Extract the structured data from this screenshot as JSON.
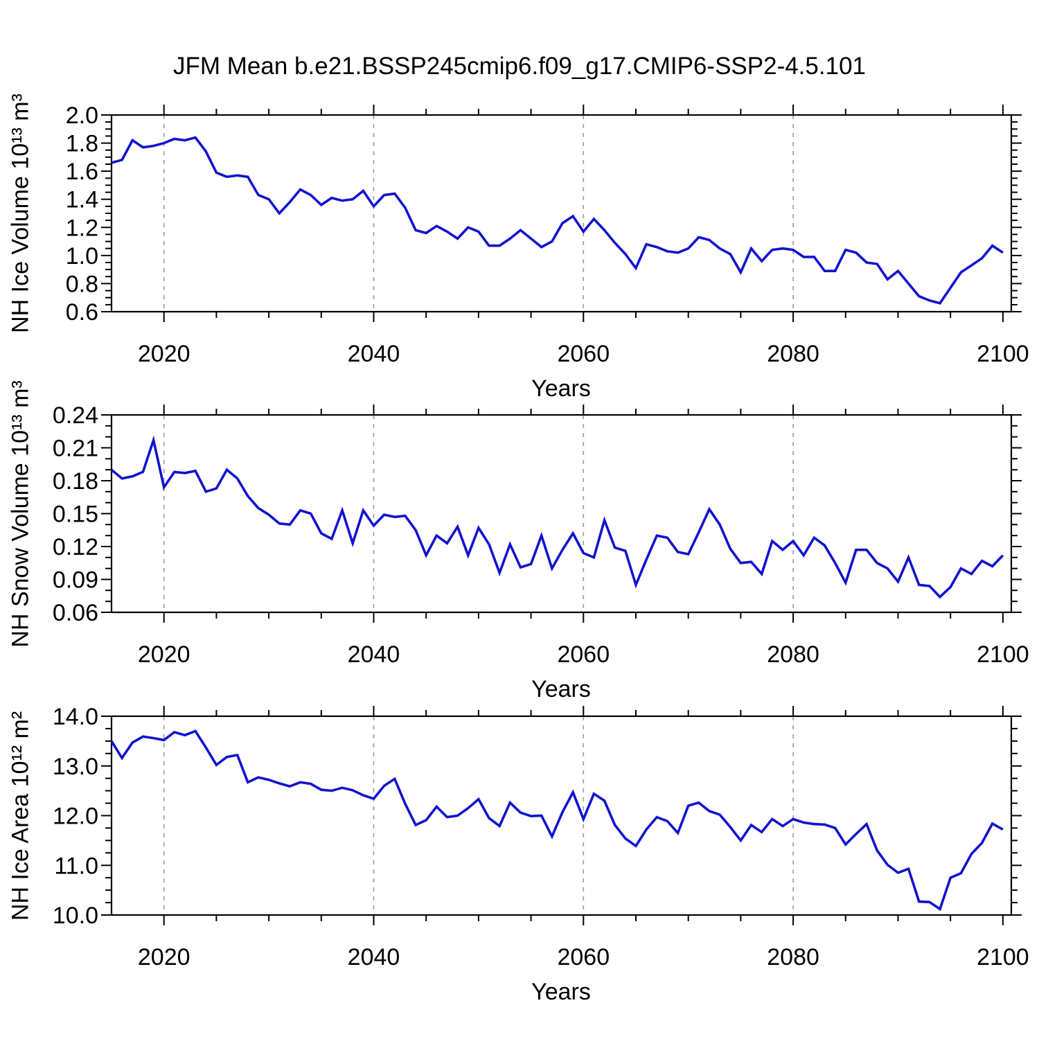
{
  "title": "JFM Mean b.e21.BSSP245cmip6.f09_g17.CMIP6-SSP2-4.5.101",
  "colors": {
    "line": "#1212d0",
    "grid": "#999999",
    "frame": "#000000",
    "text": "#000000",
    "background": "#ffffff"
  },
  "x_axis": {
    "label": "Years",
    "domain_min": 2015,
    "domain_max": 2100.8,
    "minor_step": 5,
    "major_ticks": [
      {
        "v": 2020,
        "label": "2020"
      },
      {
        "v": 2040,
        "label": "2040"
      },
      {
        "v": 2060,
        "label": "2060"
      },
      {
        "v": 2080,
        "label": "2080"
      },
      {
        "v": 2100,
        "label": "2100"
      }
    ],
    "gridlines": [
      2020,
      2040,
      2060,
      2080
    ]
  },
  "chart_data": [
    {
      "id": "nh-ice-volume",
      "type": "line",
      "title": "JFM Mean b.e21.BSSP245cmip6.f09_g17.CMIP6-SSP2-4.5.101",
      "ylabel": "NH Ice Volume 10¹³ m³",
      "xlabel": "Years",
      "legend": "none",
      "grid": "vertical-dashed",
      "x_start": 2015,
      "x_step": 1,
      "xlim": [
        2015,
        2100.8
      ],
      "ylim": [
        0.6,
        2.0
      ],
      "ytick_step": 0.2,
      "yminor_step": 0.05,
      "yticks": [
        {
          "v": 2.0,
          "label": "2.0"
        },
        {
          "v": 1.8,
          "label": "1.8"
        },
        {
          "v": 1.6,
          "label": "1.6"
        },
        {
          "v": 1.4,
          "label": "1.4"
        },
        {
          "v": 1.2,
          "label": "1.2"
        },
        {
          "v": 1.0,
          "label": "1.0"
        },
        {
          "v": 0.8,
          "label": "0.8"
        },
        {
          "v": 0.6,
          "label": "0.6"
        }
      ],
      "values": [
        1.66,
        1.68,
        1.82,
        1.77,
        1.78,
        1.8,
        1.83,
        1.82,
        1.84,
        1.74,
        1.59,
        1.56,
        1.57,
        1.56,
        1.43,
        1.4,
        1.3,
        1.38,
        1.47,
        1.43,
        1.36,
        1.41,
        1.39,
        1.4,
        1.46,
        1.35,
        1.43,
        1.44,
        1.34,
        1.18,
        1.16,
        1.21,
        1.17,
        1.12,
        1.2,
        1.17,
        1.07,
        1.07,
        1.12,
        1.18,
        1.12,
        1.06,
        1.1,
        1.23,
        1.28,
        1.17,
        1.26,
        1.18,
        1.09,
        1.01,
        0.91,
        1.08,
        1.06,
        1.03,
        1.02,
        1.05,
        1.13,
        1.11,
        1.05,
        1.01,
        0.88,
        1.05,
        0.96,
        1.04,
        1.05,
        1.04,
        0.99,
        0.99,
        0.89,
        0.89,
        1.04,
        1.02,
        0.95,
        0.94,
        0.83,
        0.89,
        0.8,
        0.71,
        0.68,
        0.66,
        0.77,
        0.88,
        0.93,
        0.98,
        1.07,
        1.02
      ]
    },
    {
      "id": "nh-snow-volume",
      "type": "line",
      "ylabel": "NH Snow Volume 10¹³ m³",
      "xlabel": "Years",
      "legend": "none",
      "grid": "vertical-dashed",
      "x_start": 2015,
      "x_step": 1,
      "xlim": [
        2015,
        2100.8
      ],
      "ylim": [
        0.06,
        0.24
      ],
      "ytick_step": 0.03,
      "yminor_step": 0.01,
      "yticks": [
        {
          "v": 0.24,
          "label": "0.24"
        },
        {
          "v": 0.21,
          "label": "0.21"
        },
        {
          "v": 0.18,
          "label": "0.18"
        },
        {
          "v": 0.15,
          "label": "0.15"
        },
        {
          "v": 0.12,
          "label": "0.12"
        },
        {
          "v": 0.09,
          "label": "0.09"
        },
        {
          "v": 0.06,
          "label": "0.06"
        }
      ],
      "values": [
        0.19,
        0.182,
        0.184,
        0.188,
        0.217,
        0.174,
        0.188,
        0.187,
        0.189,
        0.17,
        0.173,
        0.19,
        0.182,
        0.166,
        0.155,
        0.149,
        0.141,
        0.14,
        0.153,
        0.15,
        0.132,
        0.127,
        0.153,
        0.123,
        0.153,
        0.139,
        0.149,
        0.147,
        0.148,
        0.135,
        0.112,
        0.13,
        0.123,
        0.138,
        0.112,
        0.137,
        0.122,
        0.096,
        0.122,
        0.101,
        0.104,
        0.13,
        0.1,
        0.117,
        0.132,
        0.114,
        0.11,
        0.144,
        0.119,
        0.116,
        0.085,
        0.108,
        0.13,
        0.128,
        0.115,
        0.113,
        0.133,
        0.154,
        0.14,
        0.118,
        0.105,
        0.106,
        0.095,
        0.125,
        0.117,
        0.125,
        0.112,
        0.128,
        0.121,
        0.105,
        0.087,
        0.117,
        0.117,
        0.105,
        0.1,
        0.088,
        0.11,
        0.085,
        0.084,
        0.074,
        0.083,
        0.1,
        0.095,
        0.107,
        0.102,
        0.112
      ]
    },
    {
      "id": "nh-ice-area",
      "type": "line",
      "ylabel": "NH Ice Area 10¹² m²",
      "xlabel": "Years",
      "legend": "none",
      "grid": "vertical-dashed",
      "x_start": 2015,
      "x_step": 1,
      "xlim": [
        2015,
        2100.8
      ],
      "ylim": [
        10.0,
        14.0
      ],
      "ytick_step": 1.0,
      "yminor_step": 0.25,
      "yticks": [
        {
          "v": 14.0,
          "label": "14.0"
        },
        {
          "v": 13.0,
          "label": "13.0"
        },
        {
          "v": 12.0,
          "label": "12.0"
        },
        {
          "v": 11.0,
          "label": "11.0"
        },
        {
          "v": 10.0,
          "label": "10.0"
        }
      ],
      "values": [
        13.5,
        13.16,
        13.47,
        13.59,
        13.56,
        13.52,
        13.68,
        13.62,
        13.7,
        13.37,
        13.02,
        13.18,
        13.22,
        12.67,
        12.77,
        12.72,
        12.65,
        12.59,
        12.67,
        12.64,
        12.52,
        12.5,
        12.56,
        12.51,
        12.41,
        12.34,
        12.6,
        12.74,
        12.24,
        11.81,
        11.91,
        12.18,
        11.97,
        12.0,
        12.15,
        12.33,
        11.95,
        11.79,
        12.26,
        12.06,
        11.99,
        12.0,
        11.58,
        12.07,
        12.47,
        11.93,
        12.44,
        12.3,
        11.81,
        11.54,
        11.39,
        11.72,
        11.97,
        11.89,
        11.65,
        12.2,
        12.26,
        12.09,
        12.02,
        11.77,
        11.5,
        11.81,
        11.67,
        11.93,
        11.79,
        11.93,
        11.86,
        11.83,
        11.82,
        11.75,
        11.42,
        11.63,
        11.83,
        11.3,
        11.01,
        10.85,
        10.93,
        10.27,
        10.26,
        10.12,
        10.75,
        10.84,
        11.23,
        11.45,
        11.84,
        11.72
      ]
    }
  ]
}
